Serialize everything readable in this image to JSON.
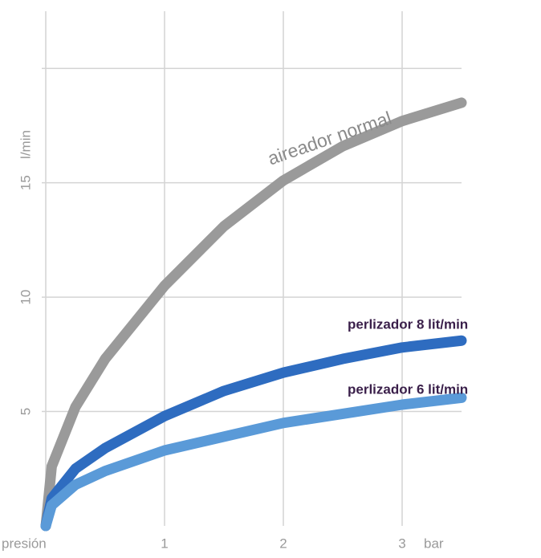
{
  "chart_data": {
    "type": "line",
    "xlabel": "presión",
    "xunit": "bar",
    "ylabel": "l/min",
    "x": [
      0,
      0.05,
      0.25,
      0.5,
      1,
      1.5,
      2,
      2.5,
      3,
      3.5
    ],
    "series": [
      {
        "name": "aireador normal",
        "color": "#9a9a9a",
        "values": [
          0,
          2.6,
          5.2,
          7.3,
          10.5,
          13.1,
          15.1,
          16.6,
          17.7,
          18.5
        ]
      },
      {
        "name": "perlizador  8 lit/min",
        "color": "#2e6cc0",
        "values": [
          0,
          1.2,
          2.5,
          3.4,
          4.8,
          5.9,
          6.7,
          7.3,
          7.8,
          8.1
        ]
      },
      {
        "name": "perlizador 6 lit/min",
        "color": "#5a9ad8",
        "values": [
          0,
          0.9,
          1.8,
          2.4,
          3.3,
          3.9,
          4.5,
          4.9,
          5.3,
          5.6
        ]
      }
    ],
    "xlim": [
      0,
      3.5
    ],
    "ylim": [
      0,
      22.5
    ],
    "xticks": [
      1,
      2,
      3
    ],
    "yticks": [
      5,
      10,
      15
    ],
    "xgrid": [
      0,
      1,
      2,
      3
    ],
    "ygrid": [
      5,
      10,
      15,
      20
    ],
    "grid": true
  }
}
